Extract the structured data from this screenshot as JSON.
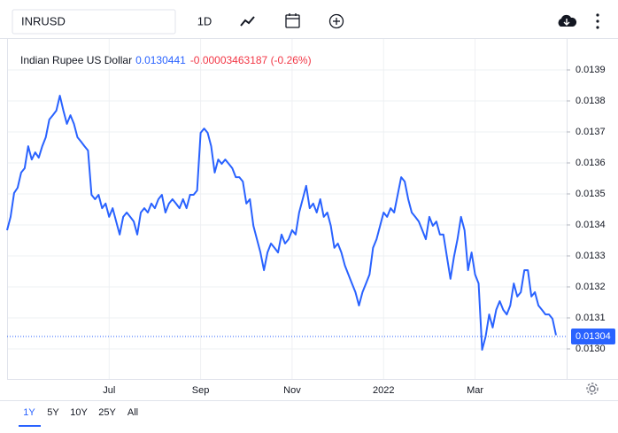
{
  "toolbar": {
    "symbol": "INRUSD",
    "interval": "1D"
  },
  "ranges": [
    "1Y",
    "5Y",
    "10Y",
    "25Y",
    "All"
  ],
  "chart_data": {
    "type": "line",
    "series": [
      {
        "name": "Indian Rupee US Dollar",
        "color": "#2962ff",
        "values": [
          0.013383,
          0.013426,
          0.013503,
          0.01352,
          0.013569,
          0.013583,
          0.013654,
          0.013611,
          0.013634,
          0.013617,
          0.013654,
          0.013683,
          0.01374,
          0.013754,
          0.013769,
          0.013817,
          0.013769,
          0.013726,
          0.013754,
          0.013726,
          0.013683,
          0.013669,
          0.013654,
          0.01364,
          0.013497,
          0.013483,
          0.013497,
          0.013454,
          0.013469,
          0.013426,
          0.013454,
          0.013411,
          0.013369,
          0.013426,
          0.01344,
          0.013426,
          0.013411,
          0.013369,
          0.01344,
          0.013454,
          0.01344,
          0.013469,
          0.013454,
          0.013483,
          0.013497,
          0.01344,
          0.013469,
          0.013483,
          0.013469,
          0.013454,
          0.013483,
          0.013454,
          0.013497,
          0.013497,
          0.013511,
          0.013697,
          0.013711,
          0.013697,
          0.013654,
          0.013569,
          0.013611,
          0.013597,
          0.013611,
          0.013597,
          0.013583,
          0.013554,
          0.013554,
          0.01354,
          0.013469,
          0.013483,
          0.013397,
          0.013354,
          0.013311,
          0.013254,
          0.013311,
          0.01334,
          0.013326,
          0.013311,
          0.013369,
          0.01334,
          0.013354,
          0.013383,
          0.013369,
          0.01344,
          0.013483,
          0.013526,
          0.013454,
          0.013469,
          0.01344,
          0.013483,
          0.013426,
          0.01344,
          0.013397,
          0.013326,
          0.01334,
          0.013311,
          0.013269,
          0.01324,
          0.013211,
          0.013183,
          0.01314,
          0.013183,
          0.013211,
          0.01324,
          0.013326,
          0.013354,
          0.013397,
          0.01344,
          0.013426,
          0.013454,
          0.01344,
          0.013497,
          0.013554,
          0.01354,
          0.013483,
          0.01344,
          0.013426,
          0.013411,
          0.013383,
          0.013354,
          0.013426,
          0.013397,
          0.013411,
          0.013369,
          0.013369,
          0.013297,
          0.013226,
          0.013297,
          0.013354,
          0.013426,
          0.013383,
          0.013254,
          0.013311,
          0.01324,
          0.013211,
          0.012997,
          0.01304,
          0.013111,
          0.013069,
          0.013126,
          0.013154,
          0.013126,
          0.013111,
          0.01314,
          0.013211,
          0.013169,
          0.013183,
          0.013254,
          0.013254,
          0.013169,
          0.013183,
          0.01314,
          0.013126,
          0.013111,
          0.013111,
          0.013097,
          0.013044
        ]
      }
    ],
    "current_value": 0.0130441,
    "change": "-0.00003463187 (-0.26%)",
    "last_price": 0.01304,
    "ylim": [
      0.0129,
      0.014
    ],
    "yticks": [
      {
        "value": 0.013,
        "label": "0.0130"
      },
      0.0131,
      0.0132,
      0.0133,
      0.0134,
      0.0135,
      0.0136,
      0.0137,
      0.0138,
      0.0139
    ],
    "xticks": [
      {
        "value": 29,
        "label": "Jul"
      },
      {
        "value": 55,
        "label": "Sep"
      },
      {
        "value": 81,
        "label": "Nov"
      },
      {
        "value": 107,
        "label": "2022"
      },
      {
        "value": 133,
        "label": "Mar"
      }
    ],
    "grid": true
  }
}
